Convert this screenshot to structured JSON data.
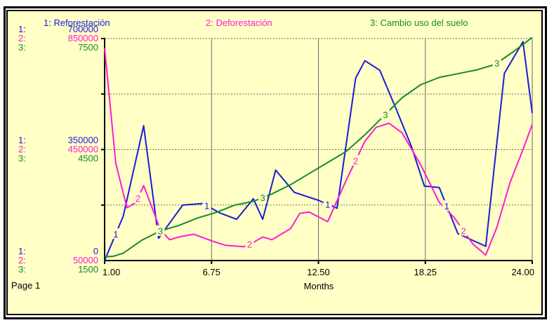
{
  "page_label": "Page 1",
  "colors": {
    "series1": "#1a1adc",
    "series2": "#ff1ad6",
    "series3": "#168a2e",
    "background": "#ffffc6",
    "grid": "#7a7a7a"
  },
  "chart_data": {
    "type": "line",
    "title": "",
    "xlabel": "Months",
    "x_ticks": [
      "1.00",
      "6.75",
      "12.50",
      "18.25",
      "24.00"
    ],
    "xlim": [
      1,
      24
    ],
    "grid": true,
    "legend_position": "top",
    "series": [
      {
        "name": "1: Reforestación",
        "axis_id": "1:",
        "color": "#1a1adc",
        "axis_labels": {
          "top": "700000",
          "mid": "350000",
          "bottom": "0"
        },
        "ylim": [
          0,
          700000
        ],
        "marker": "1",
        "x": [
          1.0,
          2.0,
          3.1,
          3.9,
          5.2,
          6.3,
          7.2,
          8.1,
          9.0,
          9.5,
          10.2,
          11.2,
          12.5,
          13.5,
          14.5,
          15.0,
          15.8,
          16.7,
          17.5,
          18.2,
          19.0,
          20.0,
          21.5,
          22.5,
          23.5,
          24.0
        ],
        "y": [
          0,
          140000,
          425000,
          70000,
          175000,
          180000,
          150000,
          130000,
          195000,
          130000,
          285000,
          215000,
          190000,
          165000,
          575000,
          630000,
          600000,
          475000,
          360000,
          235000,
          230000,
          85000,
          45000,
          590000,
          690000,
          465000
        ]
      },
      {
        "name": "2: Deforestación",
        "axis_id": "2:",
        "color": "#ff1ad6",
        "axis_labels": {
          "top": "850000",
          "mid": "450000",
          "bottom": "50000"
        },
        "ylim": [
          50000,
          850000
        ],
        "marker": "2",
        "x": [
          1.0,
          1.6,
          2.2,
          2.7,
          3.1,
          3.5,
          4.0,
          4.5,
          5.0,
          5.8,
          6.8,
          7.5,
          8.5,
          9.0,
          9.5,
          10.0,
          11.0,
          11.5,
          12.0,
          13.0,
          14.0,
          15.0,
          15.6,
          16.3,
          17.0,
          18.0,
          19.0,
          19.8,
          20.8,
          21.5,
          22.1,
          22.8,
          23.5,
          24.0
        ],
        "y": [
          815000,
          400000,
          240000,
          260000,
          320000,
          250000,
          160000,
          125000,
          135000,
          145000,
          120000,
          105000,
          100000,
          115000,
          135000,
          125000,
          165000,
          220000,
          225000,
          190000,
          340000,
          480000,
          530000,
          545000,
          510000,
          395000,
          260000,
          205000,
          110000,
          70000,
          170000,
          330000,
          450000,
          540000
        ]
      },
      {
        "name": "3: Cambio uso del suelo",
        "axis_id": "3:",
        "color": "#168a2e",
        "axis_labels": {
          "top": "7500",
          "mid": "4500",
          "bottom": "1500"
        },
        "ylim": [
          1500,
          7500
        ],
        "marker": "3",
        "x": [
          1.0,
          1.5,
          2.0,
          3.0,
          4.0,
          5.0,
          6.0,
          7.0,
          8.0,
          9.0,
          10.0,
          11.0,
          12.0,
          13.0,
          14.0,
          15.0,
          16.0,
          17.0,
          18.0,
          19.0,
          20.0,
          21.0,
          22.0,
          23.0,
          24.0
        ],
        "y": [
          1600,
          1620,
          1700,
          2050,
          2300,
          2450,
          2650,
          2800,
          3000,
          3100,
          3300,
          3550,
          3850,
          4150,
          4450,
          4900,
          5400,
          5900,
          6250,
          6450,
          6550,
          6650,
          6800,
          7150,
          7530
        ]
      }
    ]
  }
}
